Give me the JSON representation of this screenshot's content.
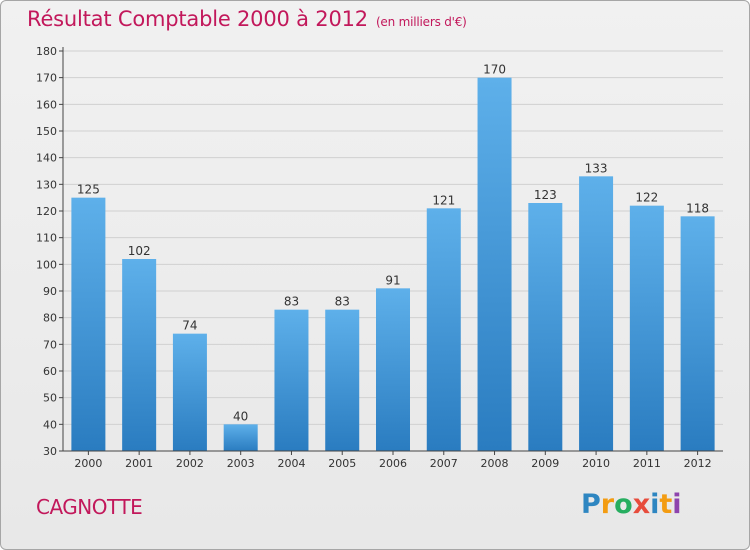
{
  "header": {
    "title": "Résultat Comptable 2000 à 2012",
    "unit": "(en milliers d'€)"
  },
  "footer": {
    "commune": "CAGNOTTE",
    "logo": "Proxiti",
    "logo_colors": [
      "#2e86c1",
      "#f39c12",
      "#27ae60",
      "#e74c3c",
      "#2e86c1",
      "#f39c12",
      "#8e44ad"
    ]
  },
  "colors": {
    "title": "#c2185b",
    "bar_top": "#5eb0ea",
    "bar_bottom": "#2a7cc0",
    "grid": "#d0d0d0",
    "axis": "#444444"
  },
  "chart_data": {
    "type": "bar",
    "title": "Résultat Comptable 2000 à 2012",
    "subtitle": "(en milliers d'€)",
    "xlabel": "",
    "ylabel": "",
    "categories": [
      "2000",
      "2001",
      "2002",
      "2003",
      "2004",
      "2005",
      "2006",
      "2007",
      "2008",
      "2009",
      "2010",
      "2011",
      "2012"
    ],
    "values": [
      125,
      102,
      74,
      40,
      83,
      83,
      91,
      121,
      170,
      123,
      133,
      122,
      118
    ],
    "ylim": [
      30,
      180
    ],
    "yticks": [
      30,
      40,
      50,
      60,
      70,
      80,
      90,
      100,
      110,
      120,
      130,
      140,
      150,
      160,
      170,
      180
    ],
    "grid": true,
    "data_labels": true
  }
}
